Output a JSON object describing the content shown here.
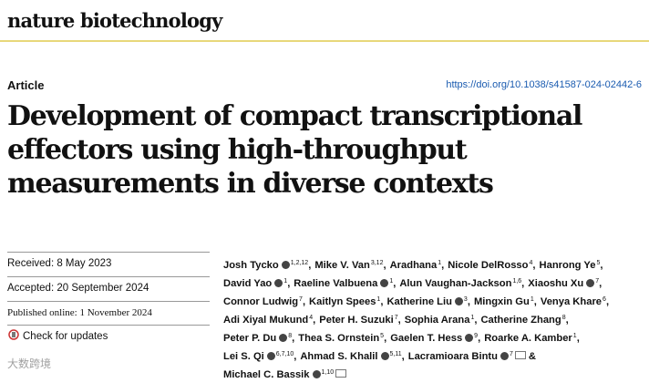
{
  "header": {
    "journal": "nature biotechnology",
    "article_type": "Article",
    "doi": "https://doi.org/10.1038/s41587-024-02442-6"
  },
  "title_lines": [
    "Development of compact transcriptional",
    "effectors using high-throughput",
    "measurements in diverse contexts"
  ],
  "dates": {
    "received": "Received: 8 May 2023",
    "accepted": "Accepted: 20 September 2024",
    "published": "Published online: 1 November 2024",
    "check": "Check for updates"
  },
  "authors": [
    [
      {
        "name": "Josh Tycko",
        "sup": "1,2,12",
        "orcid": true,
        "sep": ","
      },
      {
        "name": "Mike V. Van",
        "sup": "3,12",
        "sep": ","
      },
      {
        "name": "Aradhana",
        "sup": "1",
        "sep": ","
      },
      {
        "name": "Nicole DelRosso",
        "sup": "4",
        "sep": ","
      },
      {
        "name": "Hanrong Ye",
        "sup": "5",
        "sep": ","
      }
    ],
    [
      {
        "name": "David Yao",
        "sup": "1",
        "orcid": true,
        "sep": ","
      },
      {
        "name": "Raeline Valbuena",
        "sup": "1",
        "orcid": true,
        "sep": ","
      },
      {
        "name": "Alun Vaughan-Jackson",
        "sup": "1,6",
        "sep": ","
      },
      {
        "name": "Xiaoshu Xu",
        "sup": "7",
        "orcid": true,
        "sep": ","
      }
    ],
    [
      {
        "name": "Connor Ludwig",
        "sup": "7",
        "sep": ","
      },
      {
        "name": "Kaitlyn Spees",
        "sup": "1",
        "sep": ","
      },
      {
        "name": "Katherine Liu",
        "sup": "3",
        "orcid": true,
        "sep": ","
      },
      {
        "name": "Mingxin Gu",
        "sup": "1",
        "sep": ","
      },
      {
        "name": "Venya Khare",
        "sup": "6",
        "sep": ","
      }
    ],
    [
      {
        "name": "Adi Xiyal Mukund",
        "sup": "4",
        "sep": ","
      },
      {
        "name": "Peter H. Suzuki",
        "sup": "7",
        "sep": ","
      },
      {
        "name": "Sophia Arana",
        "sup": "1",
        "sep": ","
      },
      {
        "name": "Catherine Zhang",
        "sup": "8",
        "sep": ","
      }
    ],
    [
      {
        "name": "Peter P. Du",
        "sup": "8",
        "orcid": true,
        "sep": ","
      },
      {
        "name": "Thea S. Ornstein",
        "sup": "5",
        "sep": ","
      },
      {
        "name": "Gaelen T. Hess",
        "sup": "9",
        "orcid": true,
        "sep": ","
      },
      {
        "name": "Roarke A. Kamber",
        "sup": "1",
        "sep": ","
      }
    ],
    [
      {
        "name": "Lei S. Qi",
        "sup": "6,7,10",
        "orcid": true,
        "sep": ","
      },
      {
        "name": "Ahmad S. Khalil",
        "sup": "5,11",
        "orcid": true,
        "sep": ","
      },
      {
        "name": "Lacramioara Bintu",
        "sup": "7",
        "orcid": true,
        "email": true,
        "sep": "&"
      }
    ],
    [
      {
        "name": "Michael C. Bassik",
        "sup": "1,10",
        "orcid": true,
        "email": true
      }
    ]
  ],
  "watermark": "大数跨境"
}
